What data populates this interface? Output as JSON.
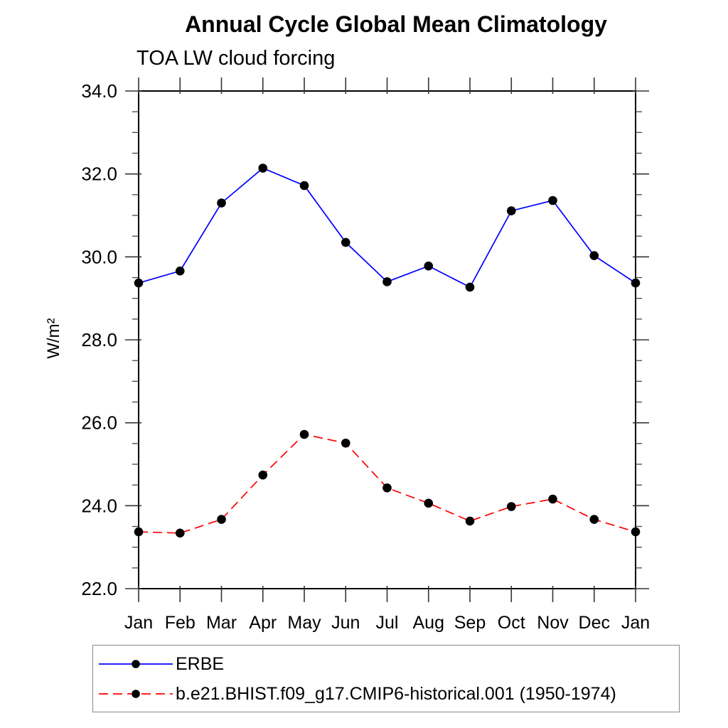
{
  "chart_data": {
    "type": "line",
    "title": "Annual Cycle Global Mean Climatology",
    "subtitle": "TOA LW cloud forcing",
    "ylabel": "W/m²",
    "xlabel": "",
    "categories": [
      "Jan",
      "Feb",
      "Mar",
      "Apr",
      "May",
      "Jun",
      "Jul",
      "Aug",
      "Sep",
      "Oct",
      "Nov",
      "Dec",
      "Jan"
    ],
    "ylim": [
      22.0,
      34.0
    ],
    "ytick_major": [
      22,
      24,
      26,
      28,
      30,
      32,
      34
    ],
    "ytick_labels": [
      "22.0",
      "24.0",
      "26.0",
      "28.0",
      "30.0",
      "32.0",
      "34.0"
    ],
    "ytick_minor_step": 0.5,
    "grid": false,
    "legend_position": "bottom-left",
    "axis_color": "#000000",
    "marker": "filled-circle",
    "marker_color": "#000000",
    "series": [
      {
        "name": "ERBE",
        "color": "#0000ff",
        "line_style": "solid",
        "values": [
          29.37,
          29.66,
          31.3,
          32.14,
          31.72,
          30.35,
          29.4,
          29.78,
          29.27,
          31.11,
          31.36,
          30.03,
          29.37
        ]
      },
      {
        "name": "b.e21.BHIST.f09_g17.CMIP6-historical.001 (1950-1974)",
        "color": "#ff0000",
        "line_style": "dashed",
        "values": [
          23.37,
          23.34,
          23.67,
          24.74,
          25.72,
          25.51,
          24.43,
          24.06,
          23.63,
          23.98,
          24.16,
          23.67,
          23.37
        ]
      }
    ]
  }
}
